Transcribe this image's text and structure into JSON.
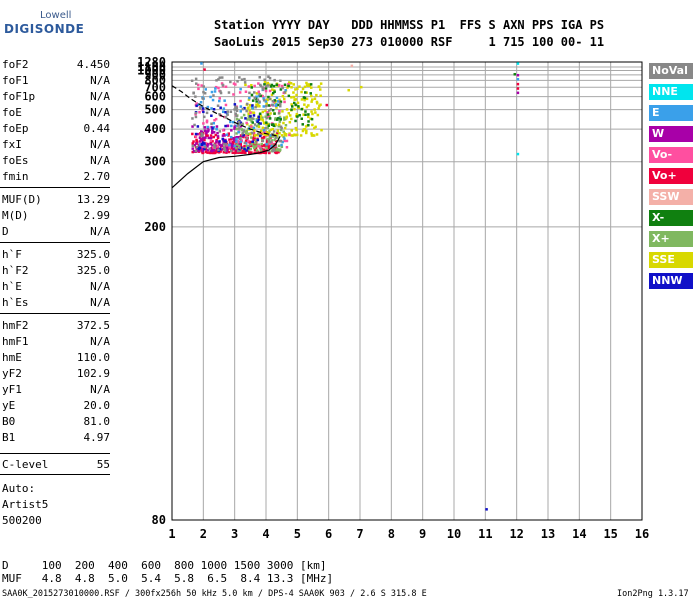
{
  "logo": {
    "line1": "Lowell",
    "line2": "DIGISONDE"
  },
  "header": {
    "line1": "Station YYYY DAY   DDD HHMMSS P1  FFS S AXN PPS IGA PS",
    "line2": "SaoLuis 2015 Sep30 273 010000 RSF     1 715 100 00- 11"
  },
  "params": [
    {
      "k": "foF2",
      "v": "4.450"
    },
    {
      "k": "foF1",
      "v": "N/A"
    },
    {
      "k": "foF1p",
      "v": "N/A"
    },
    {
      "k": "foE",
      "v": "N/A"
    },
    {
      "k": "foEp",
      "v": "0.44"
    },
    {
      "k": "fxI",
      "v": "N/A"
    },
    {
      "k": "foEs",
      "v": "N/A"
    },
    {
      "k": "fmin",
      "v": "2.70"
    },
    {
      "k": "MUF(D)",
      "v": "13.29"
    },
    {
      "k": "M(D)",
      "v": "2.99"
    },
    {
      "k": "D",
      "v": "N/A"
    },
    {
      "k": "h`F",
      "v": "325.0"
    },
    {
      "k": "h`F2",
      "v": "325.0"
    },
    {
      "k": "h`E",
      "v": "N/A"
    },
    {
      "k": "h`Es",
      "v": "N/A"
    },
    {
      "k": "hmF2",
      "v": "372.5"
    },
    {
      "k": "hmF1",
      "v": "N/A"
    },
    {
      "k": "hmE",
      "v": "110.0"
    },
    {
      "k": "yF2",
      "v": "102.9"
    },
    {
      "k": "yF1",
      "v": "N/A"
    },
    {
      "k": "yE",
      "v": "20.0"
    },
    {
      "k": "B0",
      "v": "81.0"
    },
    {
      "k": "B1",
      "v": "4.97"
    },
    {
      "k": "C-level",
      "v": "55"
    }
  ],
  "auto": {
    "line1": "Auto:",
    "line2": "Artist5",
    "line3": "500200"
  },
  "legend": [
    {
      "label": "NoVal",
      "color": "#888888"
    },
    {
      "label": "NNE",
      "color": "#00e5ee"
    },
    {
      "label": "E",
      "color": "#3aa0ea"
    },
    {
      "label": "W",
      "color": "#a800a8"
    },
    {
      "label": "Vo-",
      "color": "#ff4fa0"
    },
    {
      "label": "Vo+",
      "color": "#f0003c"
    },
    {
      "label": "SSW",
      "color": "#f4b0a8"
    },
    {
      "label": "X-",
      "color": "#108010"
    },
    {
      "label": "X+",
      "color": "#80b860"
    },
    {
      "label": "SSE",
      "color": "#d8d800"
    },
    {
      "label": "NNW",
      "color": "#1010c8"
    }
  ],
  "bottom": {
    "d_line": "D     100  200  400  600  800 1000 1500 3000 [km]",
    "muf_line": "MUF   4.8  4.8  5.0  5.4  5.8  6.5  8.4 13.3 [MHz]",
    "footer_left": "SAA0K_2015273010000.RSF / 300fx256h 50 kHz 5.0 km / DPS-4 SAA0K 903 / 2.6 S 315.8 E",
    "footer_right": "Ion2Png 1.3.17"
  },
  "chart_data": {
    "type": "scatter",
    "title": "",
    "xlabel": "",
    "ylabel": "",
    "xlim": [
      1,
      16
    ],
    "ylim": [
      80,
      1280
    ],
    "y_scale": "reciprocal",
    "grid": true,
    "legend_placement": "right",
    "x_ticks": [
      1,
      2,
      3,
      4,
      5,
      6,
      7,
      8,
      9,
      10,
      11,
      12,
      13,
      14,
      15,
      16
    ],
    "y_ticks": [
      80,
      200,
      300,
      400,
      500,
      600,
      700,
      800,
      900,
      1000,
      1100,
      1280
    ],
    "clusters": [
      {
        "name": "Vo+",
        "color": "#f0003c",
        "fmin": 1.6,
        "fmax": 4.4,
        "hmin": 325,
        "hmax": 390,
        "n": 260
      },
      {
        "name": "W",
        "color": "#a800a8",
        "fmin": 1.6,
        "fmax": 3.2,
        "hmin": 330,
        "hmax": 420,
        "n": 110
      },
      {
        "name": "X+",
        "color": "#80b860",
        "fmin": 3.0,
        "fmax": 4.6,
        "hmin": 330,
        "hmax": 480,
        "n": 120
      },
      {
        "name": "SSE",
        "color": "#d8d800",
        "fmin": 3.3,
        "fmax": 5.8,
        "hmin": 380,
        "hmax": 800,
        "n": 200
      },
      {
        "name": "Vo-",
        "color": "#ff4fa0",
        "fmin": 1.7,
        "fmax": 4.8,
        "hmin": 340,
        "hmax": 800,
        "n": 90
      },
      {
        "name": "E",
        "color": "#3aa0ea",
        "fmin": 1.8,
        "fmax": 4.6,
        "hmin": 340,
        "hmax": 700,
        "n": 70
      },
      {
        "name": "X-",
        "color": "#108010",
        "fmin": 3.5,
        "fmax": 5.6,
        "hmin": 420,
        "hmax": 760,
        "n": 60
      },
      {
        "name": "NNW",
        "color": "#1010c8",
        "fmin": 1.7,
        "fmax": 3.8,
        "hmin": 330,
        "hmax": 560,
        "n": 50
      },
      {
        "name": "NoVal",
        "color": "#888888",
        "fmin": 1.6,
        "fmax": 4.6,
        "hmin": 330,
        "hmax": 900,
        "n": 140
      }
    ],
    "isolated_points": [
      {
        "f": 12.0,
        "h": 1265,
        "series": "NNE"
      },
      {
        "f": 12.0,
        "h": 322,
        "series": "NNE"
      },
      {
        "f": 12.0,
        "h": 840,
        "series": "E"
      },
      {
        "f": 11.9,
        "h": 940,
        "series": "X-"
      },
      {
        "f": 12.0,
        "h": 920,
        "series": "W"
      },
      {
        "f": 12.0,
        "h": 760,
        "series": "Vo+"
      },
      {
        "f": 12.0,
        "h": 700,
        "series": "Vo+"
      },
      {
        "f": 12.0,
        "h": 650,
        "series": "W"
      },
      {
        "f": 11.0,
        "h": 82,
        "series": "NNW"
      },
      {
        "f": 6.7,
        "h": 1180,
        "series": "SSW"
      },
      {
        "f": 7.0,
        "h": 718,
        "series": "SSE"
      },
      {
        "f": 1.9,
        "h": 1270,
        "series": "E"
      },
      {
        "f": 2.0,
        "h": 1060,
        "series": "Vo+"
      },
      {
        "f": 6.6,
        "h": 680,
        "series": "SSE"
      },
      {
        "f": 5.9,
        "h": 540,
        "series": "Vo+"
      }
    ],
    "profile_line": [
      [
        1,
        250
      ],
      [
        1.5,
        275
      ],
      [
        2,
        300
      ],
      [
        2.5,
        310
      ],
      [
        3,
        313
      ],
      [
        3.5,
        318
      ],
      [
        3.8,
        322
      ],
      [
        4.1,
        330
      ],
      [
        4.3,
        345
      ],
      [
        4.45,
        372
      ]
    ],
    "virtual_line": [
      [
        1,
        720
      ],
      [
        1.3,
        650
      ],
      [
        1.6,
        580
      ],
      [
        2,
        520
      ],
      [
        2.5,
        470
      ],
      [
        3,
        430
      ],
      [
        3.5,
        400
      ],
      [
        3.9,
        385
      ],
      [
        4.2,
        378
      ],
      [
        4.45,
        372
      ]
    ]
  }
}
